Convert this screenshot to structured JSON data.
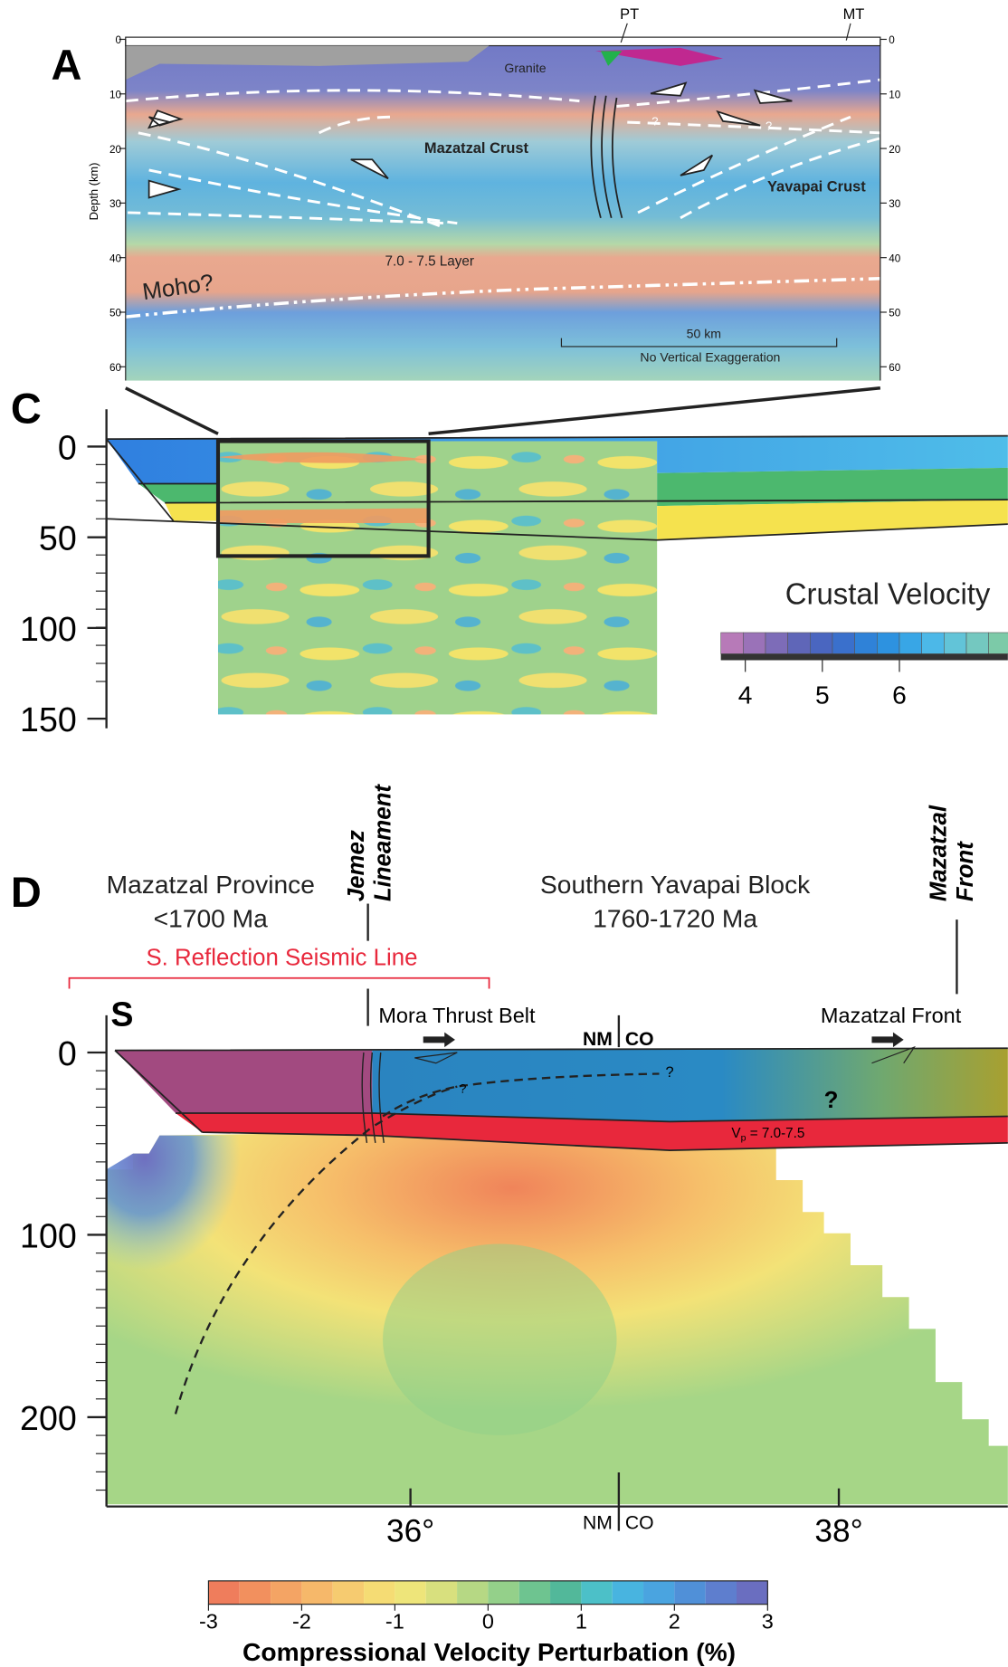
{
  "panel_a": {
    "label": "A",
    "top_labels": [
      "PT",
      "MT"
    ],
    "granite": "Granite",
    "mazatzal_crust": "Mazatzal Crust",
    "yavapai_crust": "Yavapai Crust",
    "layer": "7.0 - 7.5 Layer",
    "moho": "Moho?",
    "question_marks": [
      "?",
      "?"
    ],
    "scale_bar": "50 km",
    "scale_note": "No Vertical Exaggeration",
    "y_axis_label": "Depth (km)",
    "yticks": [
      0,
      10,
      20,
      30,
      40,
      50,
      60
    ]
  },
  "panel_c": {
    "label": "C",
    "yticks": [
      0,
      50,
      100,
      150
    ],
    "colorbar_title": "Crustal Velocity",
    "colorbar_ticks": [
      4,
      5,
      6
    ]
  },
  "panel_d": {
    "label": "D",
    "mazatzal_province": "Mazatzal Province",
    "mazatzal_age": "<1700 Ma",
    "jemez": [
      "Jemez",
      "Lineament"
    ],
    "yavapai_block": "Southern Yavapai Block",
    "yavapai_age": "1760-1720 Ma",
    "front_header": [
      "Mazatzal",
      "Front"
    ],
    "seismic_line": "S. Reflection Seismic Line",
    "s_label": "S",
    "mora": "Mora Thrust Belt",
    "nm_top": "NM",
    "co_top": "CO",
    "front_label": "Mazatzal Front",
    "question_marks": [
      "?",
      "?",
      "?"
    ],
    "vp": {
      "main": "V",
      "sub": "p",
      "rest": " = 7.0-7.5"
    },
    "yticks": [
      0,
      100,
      200
    ],
    "xticks": [
      {
        "value": 36,
        "label": "36°"
      },
      {
        "value": 38,
        "label": "38°"
      }
    ],
    "nm_bottom": "NM",
    "co_bottom": "CO",
    "colorbar_ticks": [
      -3,
      -2,
      -1,
      0,
      1,
      2,
      3
    ],
    "colorbar_title": "Compressional Velocity Perturbation (%)"
  }
}
